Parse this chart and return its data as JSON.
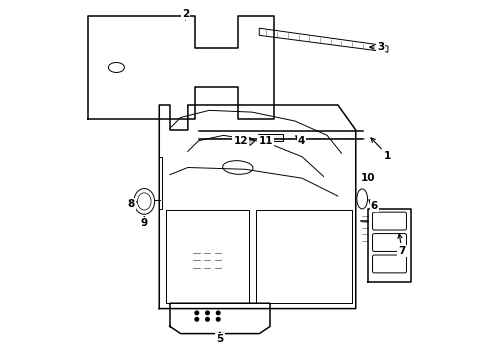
{
  "background_color": "#ffffff",
  "line_color": "#000000",
  "label_color": "#000000",
  "fig_width": 4.9,
  "fig_height": 3.6,
  "dpi": 100
}
